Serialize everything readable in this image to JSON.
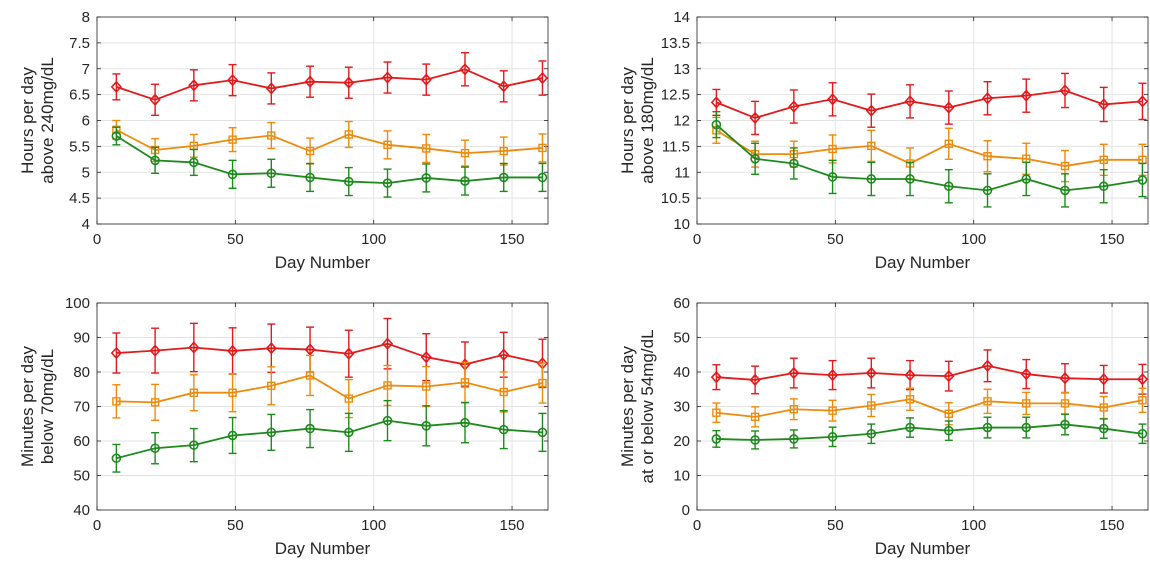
{
  "chart_data": [
    {
      "type": "line",
      "xlabel": "Day Number",
      "ylabel": [
        "Hours per day",
        "above 240mg/dL"
      ],
      "xlim": [
        0,
        163
      ],
      "ylim": [
        4,
        8
      ],
      "xticks": [
        0,
        50,
        100,
        150
      ],
      "yticks": [
        4,
        4.5,
        5,
        5.5,
        6,
        6.5,
        7,
        7.5,
        8
      ],
      "yticklabels": [
        "4",
        "4.5",
        "5",
        "5.5",
        "6",
        "6.5",
        "7",
        "7.5",
        "8"
      ],
      "grid": true,
      "x": [
        7,
        21,
        35,
        49,
        63,
        77,
        91,
        105,
        119,
        133,
        147,
        161
      ],
      "series": [
        {
          "color": "#e31a1c",
          "marker": "diamond",
          "values": [
            6.65,
            6.4,
            6.68,
            6.78,
            6.62,
            6.75,
            6.73,
            6.83,
            6.79,
            6.99,
            6.66,
            6.82
          ],
          "err": [
            0.25,
            0.3,
            0.3,
            0.3,
            0.3,
            0.3,
            0.3,
            0.3,
            0.3,
            0.32,
            0.3,
            0.33
          ]
        },
        {
          "color": "#ef8a0c",
          "marker": "square",
          "values": [
            5.82,
            5.43,
            5.51,
            5.63,
            5.71,
            5.41,
            5.73,
            5.53,
            5.46,
            5.37,
            5.41,
            5.47
          ],
          "err": [
            0.18,
            0.22,
            0.22,
            0.23,
            0.25,
            0.25,
            0.25,
            0.27,
            0.27,
            0.25,
            0.27,
            0.27
          ]
        },
        {
          "color": "#1e8a1e",
          "marker": "circle",
          "values": [
            5.7,
            5.23,
            5.19,
            4.96,
            4.98,
            4.9,
            4.82,
            4.79,
            4.89,
            4.83,
            4.9,
            4.9
          ],
          "err": [
            0.17,
            0.25,
            0.25,
            0.27,
            0.27,
            0.27,
            0.27,
            0.27,
            0.27,
            0.27,
            0.27,
            0.27
          ]
        }
      ]
    },
    {
      "type": "line",
      "xlabel": "Day Number",
      "ylabel": [
        "Hours per day",
        "above 180mg/dL"
      ],
      "xlim": [
        0,
        163
      ],
      "ylim": [
        10,
        14
      ],
      "xticks": [
        0,
        50,
        100,
        150
      ],
      "yticks": [
        10,
        10.5,
        11,
        11.5,
        12,
        12.5,
        13,
        13.5,
        14
      ],
      "yticklabels": [
        "10",
        "10.5",
        "11",
        "11.5",
        "12",
        "12.5",
        "13",
        "13.5",
        "14"
      ],
      "grid": true,
      "x": [
        7,
        21,
        35,
        49,
        63,
        77,
        91,
        105,
        119,
        133,
        147,
        161
      ],
      "series": [
        {
          "color": "#e31a1c",
          "marker": "diamond",
          "values": [
            12.35,
            12.05,
            12.27,
            12.41,
            12.19,
            12.37,
            12.25,
            12.43,
            12.48,
            12.58,
            12.31,
            12.37
          ],
          "err": [
            0.25,
            0.32,
            0.32,
            0.32,
            0.32,
            0.32,
            0.32,
            0.32,
            0.32,
            0.33,
            0.33,
            0.35
          ]
        },
        {
          "color": "#ef8a0c",
          "marker": "square",
          "values": [
            11.81,
            11.35,
            11.35,
            11.45,
            11.51,
            11.17,
            11.55,
            11.31,
            11.26,
            11.12,
            11.24,
            11.24
          ],
          "err": [
            0.25,
            0.25,
            0.25,
            0.27,
            0.3,
            0.3,
            0.3,
            0.3,
            0.3,
            0.3,
            0.3,
            0.3
          ]
        },
        {
          "color": "#1e8a1e",
          "marker": "circle",
          "values": [
            11.92,
            11.26,
            11.17,
            10.91,
            10.87,
            10.87,
            10.73,
            10.65,
            10.87,
            10.65,
            10.73,
            10.85
          ],
          "err": [
            0.25,
            0.3,
            0.3,
            0.32,
            0.32,
            0.32,
            0.32,
            0.32,
            0.32,
            0.32,
            0.32,
            0.32
          ]
        }
      ]
    },
    {
      "type": "line",
      "xlabel": "Day Number",
      "ylabel": [
        "Minutes per day",
        "below 70mg/dL"
      ],
      "xlim": [
        0,
        163
      ],
      "ylim": [
        40,
        100
      ],
      "xticks": [
        0,
        50,
        100,
        150
      ],
      "yticks": [
        40,
        50,
        60,
        70,
        80,
        90,
        100
      ],
      "yticklabels": [
        "40",
        "50",
        "60",
        "70",
        "80",
        "90",
        "100"
      ],
      "grid": true,
      "x": [
        7,
        21,
        35,
        49,
        63,
        77,
        91,
        105,
        119,
        133,
        147,
        161
      ],
      "series": [
        {
          "color": "#e31a1c",
          "marker": "diamond",
          "values": [
            85.5,
            86.2,
            87.1,
            86.1,
            86.9,
            86.5,
            85.3,
            88.2,
            84.3,
            82.2,
            85.0,
            82.5
          ],
          "err": [
            5.8,
            6.5,
            7.0,
            6.7,
            7.0,
            6.5,
            6.8,
            7.3,
            6.8,
            6.5,
            6.5,
            7.0
          ]
        },
        {
          "color": "#ef8a0c",
          "marker": "square",
          "values": [
            71.5,
            71.2,
            74.0,
            74.0,
            76.0,
            79.0,
            72.3,
            76.1,
            75.8,
            77.0,
            74.2,
            76.8
          ],
          "err": [
            4.8,
            5.2,
            5.2,
            5.5,
            5.5,
            5.8,
            5.5,
            5.8,
            5.8,
            5.8,
            5.8,
            5.8
          ]
        },
        {
          "color": "#1e8a1e",
          "marker": "circle",
          "values": [
            55.0,
            57.9,
            58.8,
            61.6,
            62.5,
            63.6,
            62.5,
            65.9,
            64.4,
            65.3,
            63.3,
            62.5
          ],
          "err": [
            4.0,
            4.5,
            4.8,
            5.2,
            5.2,
            5.5,
            5.5,
            5.8,
            5.8,
            5.8,
            5.5,
            5.5
          ]
        }
      ]
    },
    {
      "type": "line",
      "xlabel": "Day Number",
      "ylabel": [
        "Minutes per day",
        "at or below 54mg/dL"
      ],
      "xlim": [
        0,
        163
      ],
      "ylim": [
        0,
        60
      ],
      "xticks": [
        0,
        50,
        100,
        150
      ],
      "yticks": [
        0,
        10,
        20,
        30,
        40,
        50,
        60
      ],
      "yticklabels": [
        "0",
        "10",
        "20",
        "30",
        "40",
        "50",
        "60"
      ],
      "grid": true,
      "x": [
        7,
        21,
        35,
        49,
        63,
        77,
        91,
        105,
        119,
        133,
        147,
        161
      ],
      "series": [
        {
          "color": "#e31a1c",
          "marker": "diamond",
          "values": [
            38.5,
            37.7,
            39.7,
            39.1,
            39.7,
            39.1,
            38.8,
            41.8,
            39.4,
            38.2,
            37.9,
            37.9
          ],
          "err": [
            3.6,
            4.0,
            4.3,
            4.2,
            4.3,
            4.2,
            4.3,
            4.6,
            4.2,
            4.2,
            4.0,
            4.3
          ]
        },
        {
          "color": "#ef8a0c",
          "marker": "square",
          "values": [
            28.2,
            27.0,
            29.2,
            28.8,
            30.3,
            32.1,
            27.9,
            31.5,
            30.9,
            30.9,
            29.7,
            31.8
          ],
          "err": [
            2.8,
            2.9,
            3.0,
            3.0,
            3.2,
            3.2,
            3.2,
            3.5,
            3.2,
            3.2,
            3.2,
            3.5
          ]
        },
        {
          "color": "#1e8a1e",
          "marker": "circle",
          "values": [
            20.6,
            20.3,
            20.6,
            21.2,
            22.1,
            23.9,
            23.0,
            23.9,
            23.9,
            24.8,
            23.6,
            22.1
          ],
          "err": [
            2.4,
            2.6,
            2.6,
            2.8,
            2.8,
            2.8,
            2.8,
            3.0,
            3.0,
            3.0,
            2.8,
            2.8
          ]
        }
      ]
    }
  ]
}
